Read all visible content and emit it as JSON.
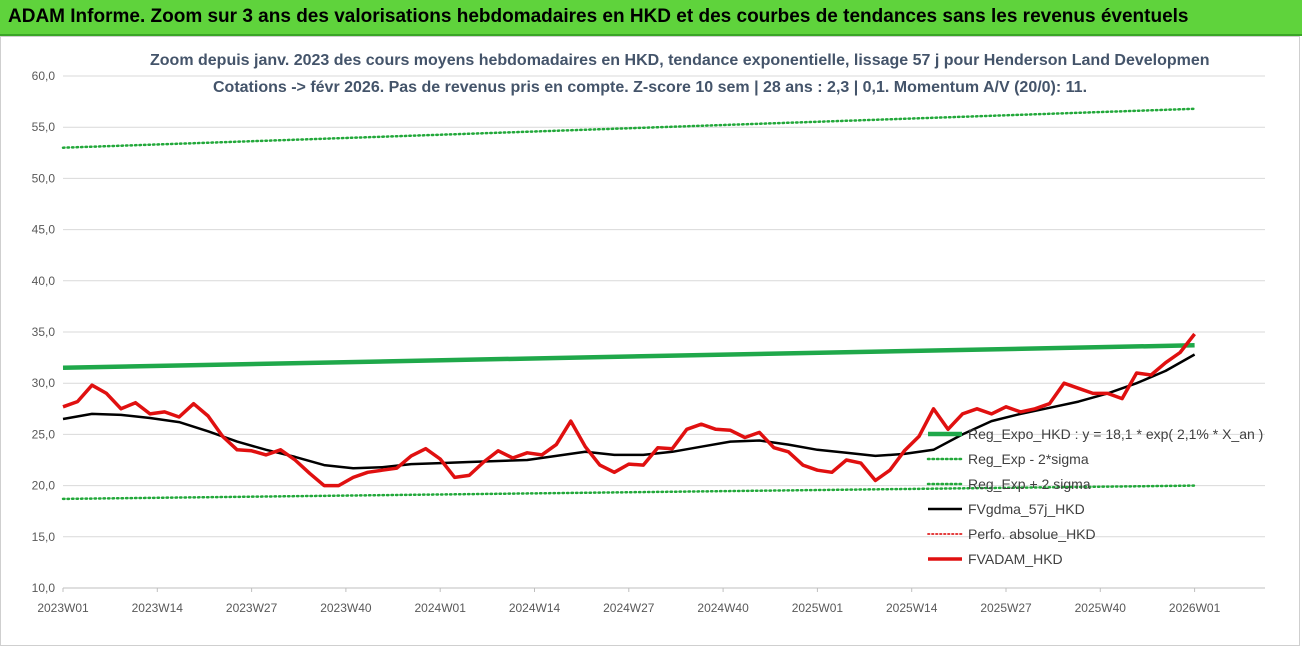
{
  "banner": {
    "title": "ADAM Informe. Zoom sur 3 ans des valorisations hebdomadaires en HKD et des courbes de tendances sans les revenus éventuels"
  },
  "colors": {
    "banner_bg": "#5fd33c",
    "regression": "#1fa84a",
    "band": "#22a83a",
    "smoothed": "#000000",
    "perf": "#e02020",
    "adam": "#e01010"
  },
  "chart_data": {
    "type": "line",
    "title_line1": "Zoom depuis janv. 2023 des cours moyens hebdomadaires en HKD, tendance exponentielle, lissage 57 j pour Henderson Land Developmen",
    "title_line2": "Cotations -> févr 2026.  Pas de revenus pris en compte. Z-score 10 sem | 28 ans : 2,3 | 0,1. Momentum A/V (20/0): 11.",
    "ylim": [
      10,
      60
    ],
    "y_ticks": [
      "10,0",
      "15,0",
      "20,0",
      "25,0",
      "30,0",
      "35,0",
      "40,0",
      "45,0",
      "50,0",
      "55,0",
      "60,0"
    ],
    "x_tick_labels": [
      "2023W01",
      "2023W14",
      "2023W27",
      "2023W40",
      "2024W01",
      "2024W14",
      "2024W27",
      "2024W40",
      "2025W01",
      "2025W14",
      "2025W27",
      "2025W40",
      "2026W01"
    ],
    "weeks_between_ticks": 13,
    "legend": [
      "Reg_Expo_HKD : y = 18,1  * exp( 2,1% *  X_an )",
      "Reg_Exp - 2*sigma",
      "Reg_Exp + 2 sigma",
      "FVgdma_57j_HKD",
      "Perfo. absolue_HKD",
      "FVADAM_HKD"
    ],
    "series": [
      {
        "name": "Reg_Expo_HKD : y = 18,1  * exp( 2,1% *  X_an )",
        "style": "solid-thick",
        "points": [
          [
            0,
            31.5
          ],
          [
            156,
            33.7
          ]
        ]
      },
      {
        "name": "Reg_Exp - 2*sigma",
        "style": "dotted",
        "points": [
          [
            0,
            18.7
          ],
          [
            156,
            20.0
          ]
        ]
      },
      {
        "name": "Reg_Exp + 2 sigma",
        "style": "dotted",
        "points": [
          [
            0,
            53.0
          ],
          [
            156,
            56.8
          ]
        ]
      },
      {
        "name": "FVgdma_57j_HKD",
        "style": "solid",
        "points": [
          [
            0,
            26.5
          ],
          [
            4,
            27.0
          ],
          [
            8,
            26.9
          ],
          [
            12,
            26.6
          ],
          [
            16,
            26.2
          ],
          [
            20,
            25.3
          ],
          [
            24,
            24.3
          ],
          [
            28,
            23.5
          ],
          [
            32,
            22.8
          ],
          [
            36,
            22.0
          ],
          [
            40,
            21.7
          ],
          [
            44,
            21.8
          ],
          [
            48,
            22.1
          ],
          [
            52,
            22.2
          ],
          [
            56,
            22.3
          ],
          [
            60,
            22.4
          ],
          [
            64,
            22.5
          ],
          [
            68,
            22.9
          ],
          [
            72,
            23.3
          ],
          [
            76,
            23.0
          ],
          [
            80,
            23.0
          ],
          [
            84,
            23.3
          ],
          [
            88,
            23.8
          ],
          [
            92,
            24.3
          ],
          [
            96,
            24.4
          ],
          [
            100,
            24.0
          ],
          [
            104,
            23.5
          ],
          [
            108,
            23.2
          ],
          [
            112,
            22.9
          ],
          [
            116,
            23.1
          ],
          [
            120,
            23.5
          ],
          [
            124,
            25.0
          ],
          [
            128,
            26.3
          ],
          [
            132,
            27.0
          ],
          [
            136,
            27.6
          ],
          [
            140,
            28.2
          ],
          [
            144,
            29.0
          ],
          [
            148,
            30.0
          ],
          [
            152,
            31.2
          ],
          [
            156,
            32.8
          ]
        ]
      },
      {
        "name": "FVADAM_HKD",
        "style": "solid-thick",
        "points": [
          [
            0,
            27.7
          ],
          [
            2,
            28.2
          ],
          [
            4,
            29.8
          ],
          [
            6,
            29.0
          ],
          [
            8,
            27.5
          ],
          [
            10,
            28.1
          ],
          [
            12,
            27.0
          ],
          [
            14,
            27.2
          ],
          [
            16,
            26.7
          ],
          [
            18,
            28.0
          ],
          [
            20,
            26.8
          ],
          [
            22,
            24.8
          ],
          [
            24,
            23.5
          ],
          [
            26,
            23.4
          ],
          [
            28,
            23.0
          ],
          [
            30,
            23.5
          ],
          [
            32,
            22.5
          ],
          [
            34,
            21.2
          ],
          [
            36,
            20.0
          ],
          [
            38,
            20.0
          ],
          [
            40,
            20.8
          ],
          [
            42,
            21.3
          ],
          [
            44,
            21.5
          ],
          [
            46,
            21.7
          ],
          [
            48,
            22.9
          ],
          [
            50,
            23.6
          ],
          [
            52,
            22.6
          ],
          [
            54,
            20.8
          ],
          [
            56,
            21.0
          ],
          [
            58,
            22.3
          ],
          [
            60,
            23.4
          ],
          [
            62,
            22.7
          ],
          [
            64,
            23.2
          ],
          [
            66,
            23.0
          ],
          [
            68,
            24.0
          ],
          [
            70,
            26.3
          ],
          [
            72,
            23.8
          ],
          [
            74,
            22.0
          ],
          [
            76,
            21.3
          ],
          [
            78,
            22.1
          ],
          [
            80,
            22.0
          ],
          [
            82,
            23.7
          ],
          [
            84,
            23.6
          ],
          [
            86,
            25.5
          ],
          [
            88,
            26.0
          ],
          [
            90,
            25.5
          ],
          [
            92,
            25.4
          ],
          [
            94,
            24.7
          ],
          [
            96,
            25.2
          ],
          [
            98,
            23.7
          ],
          [
            100,
            23.3
          ],
          [
            102,
            22.0
          ],
          [
            104,
            21.5
          ],
          [
            106,
            21.3
          ],
          [
            108,
            22.5
          ],
          [
            110,
            22.2
          ],
          [
            112,
            20.5
          ],
          [
            114,
            21.5
          ],
          [
            116,
            23.4
          ],
          [
            118,
            24.8
          ],
          [
            120,
            27.5
          ],
          [
            122,
            25.5
          ],
          [
            124,
            27.0
          ],
          [
            126,
            27.5
          ],
          [
            128,
            27.0
          ],
          [
            130,
            27.7
          ],
          [
            132,
            27.2
          ],
          [
            134,
            27.5
          ],
          [
            136,
            28.0
          ],
          [
            138,
            30.0
          ],
          [
            140,
            29.5
          ],
          [
            142,
            29.0
          ],
          [
            144,
            29.0
          ],
          [
            146,
            28.5
          ],
          [
            148,
            31.0
          ],
          [
            150,
            30.8
          ],
          [
            152,
            32.0
          ],
          [
            154,
            33.0
          ],
          [
            156,
            34.8
          ]
        ]
      }
    ]
  }
}
